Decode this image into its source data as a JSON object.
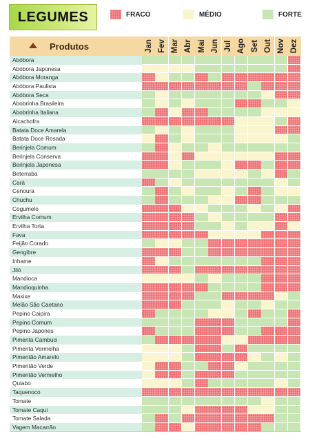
{
  "title": "LEGUMES",
  "legend": [
    {
      "key": "F",
      "label": "FRACO",
      "color": "#ee6f72"
    },
    {
      "key": "M",
      "label": "MÉDIO",
      "color": "#fbf5cf"
    },
    {
      "key": "S",
      "label": "FORTE",
      "color": "#c7e6b3"
    }
  ],
  "table": {
    "products_header": "Produtos",
    "months": [
      "Jan",
      "Fev",
      "Mar",
      "Abr",
      "Mai",
      "Jun",
      "Jul",
      "Ago",
      "Set",
      "Out",
      "Nov",
      "Dez"
    ],
    "rows": [
      {
        "name": "Abóbora",
        "levels": "SSSSSSSSSSSF"
      },
      {
        "name": "Abóbora Japonesa",
        "levels": "MMMMSSSSSSSF"
      },
      {
        "name": "Abóbora Moranga",
        "levels": "FMSSFSFFFFFF"
      },
      {
        "name": "Abóbora Paulista",
        "levels": "FFFFFFFFSFFF"
      },
      {
        "name": "Abóbora Seca",
        "levels": "SMSSSSSSSMFF"
      },
      {
        "name": "Abobrinha Brasileira",
        "levels": "SMSMSSSFFSSM"
      },
      {
        "name": "Abobrinha Italiana",
        "levels": "SFMFFSSSSMMM"
      },
      {
        "name": "Alcachofra",
        "levels": "FFFFFFFMMMSF"
      },
      {
        "name": "Batata Doce Amarela",
        "levels": "SMSMSSSMMMFF"
      },
      {
        "name": "Batata Doce Rosada",
        "levels": "MFSMSSSMMMMS"
      },
      {
        "name": "Berinjela Comum",
        "levels": "SFMSSMSSSSSS"
      },
      {
        "name": "Berinjela Conserva",
        "levels": "FFMFMMMMMMFF"
      },
      {
        "name": "Berinjela Japonesa",
        "levels": "FFMSSSMFFSFF"
      },
      {
        "name": "Beterraba",
        "levels": "SSSSMMMMSMFS"
      },
      {
        "name": "Cará",
        "levels": "FSMSSSSSSSMS"
      },
      {
        "name": "Cenoura",
        "levels": "SFSMSSMSFSMM"
      },
      {
        "name": "Chuchu",
        "levels": "SFSSSMMFFSSS"
      },
      {
        "name": "Cogumelo",
        "levels": "FFFMMSSSMSMF"
      },
      {
        "name": "Ervilha Comum",
        "levels": "FFFFSMSSSSFF"
      },
      {
        "name": "Ervilha Torta",
        "levels": "FFFFSSMSMMFM"
      },
      {
        "name": "Fava",
        "levels": "FFFFFMMMMFFF"
      },
      {
        "name": "Feijão Corado",
        "levels": "SMMSSFFFFFFF"
      },
      {
        "name": "Gengibre",
        "levels": "FFFSSFFFFFFF"
      },
      {
        "name": "Inhame",
        "levels": "FMSSSSSSSFFF"
      },
      {
        "name": "Jiló",
        "levels": "FFFSFFFFFFFF"
      },
      {
        "name": "Mandioca",
        "levels": "MMMMSMSSSFFF"
      },
      {
        "name": "Mandioquinha",
        "levels": "FFFFFSSSSFFF"
      },
      {
        "name": "Maxixe",
        "levels": "FFFFSSFFFFMS"
      },
      {
        "name": "Melão São Caetano",
        "levels": "FFFSSSMSSMSS"
      },
      {
        "name": "Pepino Caipira",
        "levels": "FSSSSMMSFSSF"
      },
      {
        "name": "Pepino Comum",
        "levels": "SSSSFFFSSSSF"
      },
      {
        "name": "Pepino Japones",
        "levels": "FSSSFFFSSFFF"
      },
      {
        "name": "Pimenta Cambuci",
        "levels": "SFFFFFMMFFFF"
      },
      {
        "name": "Pimenta Vermelha",
        "levels": "MMMSFFSFSSSS"
      },
      {
        "name": "Pimentão Amarelo",
        "levels": "MMMSFFFFMSMS"
      },
      {
        "name": "Pimentão Verde",
        "levels": "MFFSSFFMSSSS"
      },
      {
        "name": "Pimentão Vermelho",
        "levels": "MFFSFFFSSSSS"
      },
      {
        "name": "Quiabo",
        "levels": "MMMSFSSSSSMS"
      },
      {
        "name": "Taquenoco",
        "levels": "FFFFFFFFFFFF"
      },
      {
        "name": "Tomate",
        "levels": "SSSSSSSSSMSS"
      },
      {
        "name": "Tomate Caqui",
        "levels": "SSSMFFFFMMSS"
      },
      {
        "name": "Tomate Salada",
        "levels": "SFSFFFFFFFSS"
      },
      {
        "name": "Vagem Macarrão",
        "levels": "SFFMFFFFFSSS"
      }
    ]
  }
}
